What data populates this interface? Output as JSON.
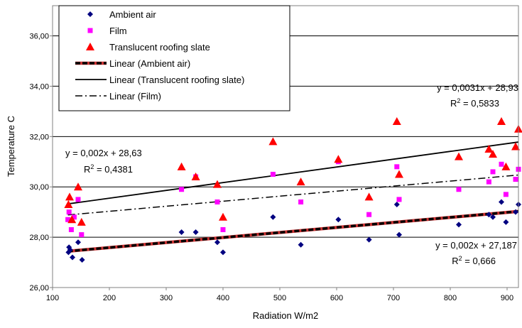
{
  "chart_data": {
    "type": "scatter",
    "xlabel": "Radiation W/m2",
    "ylabel": "Temperature C",
    "xlim": [
      100,
      920
    ],
    "ylim": [
      26,
      37.2
    ],
    "x_ticks": [
      100,
      200,
      300,
      400,
      500,
      600,
      700,
      800,
      900
    ],
    "y_ticks": [
      26,
      28,
      30,
      32,
      34,
      36
    ],
    "y_tick_labels": [
      "26,00",
      "28,00",
      "30,00",
      "32,00",
      "34,00",
      "36,00"
    ],
    "grid": "horizontal",
    "legend_placement": "top-left",
    "series": [
      {
        "name": "Ambient air",
        "marker": "diamond",
        "color": "#000080",
        "points": [
          [
            128,
            27.4
          ],
          [
            129,
            27.6
          ],
          [
            131,
            27.5
          ],
          [
            135,
            27.2
          ],
          [
            145,
            27.8
          ],
          [
            152,
            27.1
          ],
          [
            327,
            28.2
          ],
          [
            352,
            28.2
          ],
          [
            390,
            27.8
          ],
          [
            400,
            27.4
          ],
          [
            488,
            28.8
          ],
          [
            537,
            27.7
          ],
          [
            603,
            28.7
          ],
          [
            657,
            27.9
          ],
          [
            706,
            29.3
          ],
          [
            710,
            28.1
          ],
          [
            815,
            28.5
          ],
          [
            868,
            28.9
          ],
          [
            875,
            28.8
          ],
          [
            890,
            29.4
          ],
          [
            898,
            28.6
          ],
          [
            915,
            29.0
          ],
          [
            920,
            29.3
          ]
        ]
      },
      {
        "name": "Film",
        "marker": "square",
        "color": "#ff00ff",
        "points": [
          [
            127,
            28.7
          ],
          [
            129,
            29.0
          ],
          [
            133,
            28.3
          ],
          [
            138,
            28.8
          ],
          [
            145,
            29.5
          ],
          [
            151,
            28.1
          ],
          [
            327,
            29.9
          ],
          [
            352,
            30.4
          ],
          [
            390,
            29.4
          ],
          [
            400,
            28.3
          ],
          [
            488,
            30.5
          ],
          [
            537,
            29.4
          ],
          [
            603,
            31.0
          ],
          [
            657,
            28.9
          ],
          [
            706,
            30.8
          ],
          [
            710,
            29.5
          ],
          [
            815,
            29.9
          ],
          [
            868,
            30.2
          ],
          [
            875,
            30.6
          ],
          [
            890,
            30.9
          ],
          [
            898,
            29.7
          ],
          [
            915,
            30.3
          ],
          [
            920,
            30.7
          ]
        ]
      },
      {
        "name": "Translucent roofing slate",
        "marker": "triangle",
        "color": "#ff0000",
        "points": [
          [
            128,
            29.3
          ],
          [
            130,
            29.6
          ],
          [
            134,
            28.7
          ],
          [
            145,
            30.0
          ],
          [
            151,
            28.6
          ],
          [
            327,
            30.8
          ],
          [
            352,
            30.4
          ],
          [
            390,
            30.1
          ],
          [
            400,
            28.8
          ],
          [
            488,
            31.8
          ],
          [
            537,
            30.2
          ],
          [
            603,
            31.1
          ],
          [
            657,
            29.6
          ],
          [
            706,
            32.6
          ],
          [
            710,
            30.5
          ],
          [
            815,
            31.2
          ],
          [
            868,
            31.5
          ],
          [
            875,
            31.3
          ],
          [
            890,
            32.6
          ],
          [
            898,
            30.8
          ],
          [
            915,
            31.6
          ],
          [
            920,
            32.3
          ]
        ]
      }
    ],
    "trendlines": [
      {
        "name": "Linear (Ambient air)",
        "slope": 0.002,
        "intercept": 27.187,
        "style": "thick-dashed",
        "color": "#000000"
      },
      {
        "name": "Linear (Translucent roofing slate)",
        "slope": 0.0031,
        "intercept": 28.93,
        "style": "solid",
        "color": "#000000"
      },
      {
        "name": "Linear (Film)",
        "slope": 0.002,
        "intercept": 28.63,
        "style": "dash-dot",
        "color": "#000000"
      }
    ],
    "annotations": [
      {
        "id": "slate",
        "eq": "y = 0,0031x + 28,93",
        "r2_label": "R",
        "r2_sup": "2",
        "r2_value": " = 0,5833"
      },
      {
        "id": "film",
        "eq": "y = 0,002x + 28,63",
        "r2_label": "R",
        "r2_sup": "2",
        "r2_value": " = 0,4381"
      },
      {
        "id": "ambient",
        "eq": "y = 0,002x + 27,187",
        "r2_label": "R",
        "r2_sup": "2",
        "r2_value": " = 0,666"
      }
    ]
  }
}
